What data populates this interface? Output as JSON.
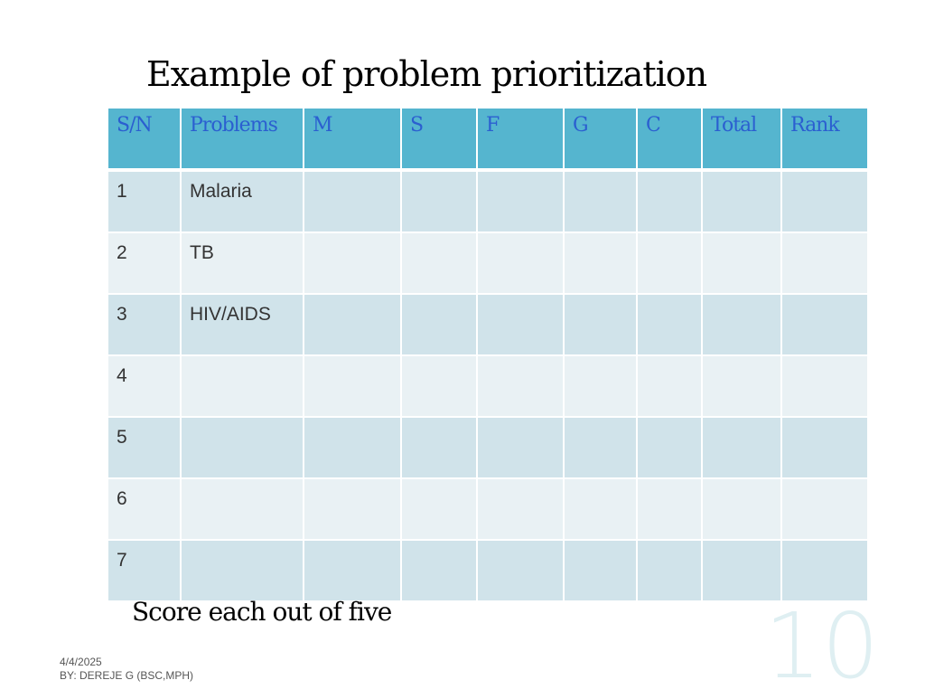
{
  "slide": {
    "title": "Example of problem prioritization",
    "note": "Score each out of five",
    "footer_date": "4/4/2025",
    "footer_author": "BY: DEREJE G (BSC,MPH)",
    "slide_number": "10"
  },
  "table": {
    "headers": [
      "S/N",
      "Problems",
      "M",
      "S",
      "F",
      "G",
      "C",
      "Total",
      "Rank"
    ],
    "rows": [
      [
        "1",
        "Malaria",
        "",
        "",
        "",
        "",
        "",
        "",
        ""
      ],
      [
        "2",
        "TB",
        "",
        "",
        "",
        "",
        "",
        "",
        ""
      ],
      [
        "3",
        "HIV/AIDS",
        "",
        "",
        "",
        "",
        "",
        "",
        ""
      ],
      [
        "4",
        "",
        "",
        "",
        "",
        "",
        "",
        "",
        ""
      ],
      [
        "5",
        "",
        "",
        "",
        "",
        "",
        "",
        "",
        ""
      ],
      [
        "6",
        "",
        "",
        "",
        "",
        "",
        "",
        "",
        ""
      ],
      [
        "7",
        "",
        "",
        "",
        "",
        "",
        "",
        "",
        ""
      ]
    ]
  },
  "colors": {
    "header_bg": "#55b5cf",
    "header_text": "#2b5fd0",
    "row_odd_bg": "#d0e3ea",
    "row_even_bg": "#e9f1f4"
  }
}
